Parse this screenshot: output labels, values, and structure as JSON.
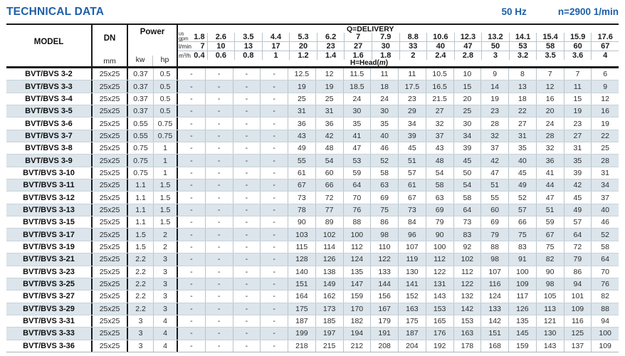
{
  "page": {
    "title": "TECHNICAL DATA",
    "frequency": "50 Hz",
    "speed": "n=2900 1/min"
  },
  "colors": {
    "accent_blue": "#1d5fa7",
    "alt_row_blue": "#dbe5eb",
    "grid_light": "#b9c4cb",
    "grid_dark": "#1a1a1a"
  },
  "table": {
    "headers": {
      "model": "MODEL",
      "dn": "DN",
      "dn_unit": "mm",
      "power": "Power",
      "kw": "kw",
      "hp": "hp",
      "delivery_label": "Q=DELIVERY",
      "head_prefix": "H=Head(",
      "head_unit": "m",
      "head_suffix": ")",
      "unit_rows": [
        {
          "unit": "us gpm",
          "unit_lines": "us\ngpm",
          "values": [
            "1.8",
            "2.6",
            "3.5",
            "4.4",
            "5.3",
            "6.2",
            "7",
            "7.9",
            "8.8",
            "10.6",
            "12.3",
            "13.2",
            "14.1",
            "15.4",
            "15.9",
            "17.6"
          ]
        },
        {
          "unit": "l/min",
          "values": [
            "7",
            "10",
            "13",
            "17",
            "20",
            "23",
            "27",
            "30",
            "33",
            "40",
            "47",
            "50",
            "53",
            "58",
            "60",
            "67"
          ]
        },
        {
          "unit": "m³/h",
          "values": [
            "0.4",
            "0.6",
            "0.8",
            "1",
            "1.2",
            "1.4",
            "1.6",
            "1.8",
            "2",
            "2.4",
            "2.8",
            "3",
            "3.2",
            "3.5",
            "3.6",
            "4"
          ]
        }
      ]
    },
    "rows": [
      {
        "model": "BVT/BVS 3-2",
        "dn": "25x25",
        "kw": "0.37",
        "hp": "0.5",
        "values": [
          "-",
          "-",
          "-",
          "-",
          "12.5",
          "12",
          "11.5",
          "11",
          "11",
          "10.5",
          "10",
          "9",
          "8",
          "7",
          "7",
          "6"
        ]
      },
      {
        "model": "BVT/BVS 3-3",
        "dn": "25x25",
        "kw": "0.37",
        "hp": "0.5",
        "values": [
          "-",
          "-",
          "-",
          "-",
          "19",
          "19",
          "18.5",
          "18",
          "17.5",
          "16.5",
          "15",
          "14",
          "13",
          "12",
          "11",
          "9"
        ]
      },
      {
        "model": "BVT/BVS 3-4",
        "dn": "25x25",
        "kw": "0.37",
        "hp": "0.5",
        "values": [
          "-",
          "-",
          "-",
          "-",
          "25",
          "25",
          "24",
          "24",
          "23",
          "21.5",
          "20",
          "19",
          "18",
          "16",
          "15",
          "12"
        ]
      },
      {
        "model": "BVT/BVS 3-5",
        "dn": "25x25",
        "kw": "0.37",
        "hp": "0.5",
        "values": [
          "-",
          "-",
          "-",
          "-",
          "31",
          "31",
          "30",
          "30",
          "29",
          "27",
          "25",
          "23",
          "22",
          "20",
          "19",
          "16"
        ]
      },
      {
        "model": "BVT/BVS 3-6",
        "dn": "25x25",
        "kw": "0.55",
        "hp": "0.75",
        "values": [
          "-",
          "-",
          "-",
          "-",
          "36",
          "36",
          "35",
          "35",
          "34",
          "32",
          "30",
          "28",
          "27",
          "24",
          "23",
          "19"
        ]
      },
      {
        "model": "BVT/BVS 3-7",
        "dn": "25x25",
        "kw": "0.55",
        "hp": "0.75",
        "values": [
          "-",
          "-",
          "-",
          "-",
          "43",
          "42",
          "41",
          "40",
          "39",
          "37",
          "34",
          "32",
          "31",
          "28",
          "27",
          "22"
        ]
      },
      {
        "model": "BVT/BVS 3-8",
        "dn": "25x25",
        "kw": "0.75",
        "hp": "1",
        "values": [
          "-",
          "-",
          "-",
          "-",
          "49",
          "48",
          "47",
          "46",
          "45",
          "43",
          "39",
          "37",
          "35",
          "32",
          "31",
          "25"
        ]
      },
      {
        "model": "BVT/BVS 3-9",
        "dn": "25x25",
        "kw": "0.75",
        "hp": "1",
        "values": [
          "-",
          "-",
          "-",
          "-",
          "55",
          "54",
          "53",
          "52",
          "51",
          "48",
          "45",
          "42",
          "40",
          "36",
          "35",
          "28"
        ]
      },
      {
        "model": "BVT/BVS 3-10",
        "dn": "25x25",
        "kw": "0.75",
        "hp": "1",
        "values": [
          "-",
          "-",
          "-",
          "-",
          "61",
          "60",
          "59",
          "58",
          "57",
          "54",
          "50",
          "47",
          "45",
          "41",
          "39",
          "31"
        ]
      },
      {
        "model": "BVT/BVS 3-11",
        "dn": "25x25",
        "kw": "1.1",
        "hp": "1.5",
        "values": [
          "-",
          "-",
          "-",
          "-",
          "67",
          "66",
          "64",
          "63",
          "61",
          "58",
          "54",
          "51",
          "49",
          "44",
          "42",
          "34"
        ]
      },
      {
        "model": "BVT/BVS 3-12",
        "dn": "25x25",
        "kw": "1.1",
        "hp": "1.5",
        "values": [
          "-",
          "-",
          "-",
          "-",
          "73",
          "72",
          "70",
          "69",
          "67",
          "63",
          "58",
          "55",
          "52",
          "47",
          "45",
          "37"
        ]
      },
      {
        "model": "BVT/BVS 3-13",
        "dn": "25x25",
        "kw": "1.1",
        "hp": "1.5",
        "values": [
          "-",
          "-",
          "-",
          "-",
          "78",
          "77",
          "76",
          "75",
          "73",
          "69",
          "64",
          "60",
          "57",
          "51",
          "49",
          "40"
        ]
      },
      {
        "model": "BVT/BVS 3-15",
        "dn": "25x25",
        "kw": "1.1",
        "hp": "1.5",
        "values": [
          "-",
          "-",
          "-",
          "-",
          "90",
          "89",
          "88",
          "86",
          "84",
          "79",
          "73",
          "69",
          "66",
          "59",
          "57",
          "46"
        ]
      },
      {
        "model": "BVT/BVS 3-17",
        "dn": "25x25",
        "kw": "1.5",
        "hp": "2",
        "values": [
          "-",
          "-",
          "-",
          "-",
          "103",
          "102",
          "100",
          "98",
          "96",
          "90",
          "83",
          "79",
          "75",
          "67",
          "64",
          "52"
        ]
      },
      {
        "model": "BVT/BVS 3-19",
        "dn": "25x25",
        "kw": "1.5",
        "hp": "2",
        "values": [
          "-",
          "-",
          "-",
          "-",
          "115",
          "114",
          "112",
          "110",
          "107",
          "100",
          "92",
          "88",
          "83",
          "75",
          "72",
          "58"
        ]
      },
      {
        "model": "BVT/BVS 3-21",
        "dn": "25x25",
        "kw": "2.2",
        "hp": "3",
        "values": [
          "-",
          "-",
          "-",
          "-",
          "128",
          "126",
          "124",
          "122",
          "119",
          "112",
          "102",
          "98",
          "91",
          "82",
          "79",
          "64"
        ]
      },
      {
        "model": "BVT/BVS 3-23",
        "dn": "25x25",
        "kw": "2.2",
        "hp": "3",
        "values": [
          "-",
          "-",
          "-",
          "-",
          "140",
          "138",
          "135",
          "133",
          "130",
          "122",
          "112",
          "107",
          "100",
          "90",
          "86",
          "70"
        ]
      },
      {
        "model": "BVT/BVS 3-25",
        "dn": "25x25",
        "kw": "2.2",
        "hp": "3",
        "values": [
          "-",
          "-",
          "-",
          "-",
          "151",
          "149",
          "147",
          "144",
          "141",
          "131",
          "122",
          "116",
          "109",
          "98",
          "94",
          "76"
        ]
      },
      {
        "model": "BVT/BVS 3-27",
        "dn": "25x25",
        "kw": "2.2",
        "hp": "3",
        "values": [
          "-",
          "-",
          "-",
          "-",
          "164",
          "162",
          "159",
          "156",
          "152",
          "143",
          "132",
          "124",
          "117",
          "105",
          "101",
          "82"
        ]
      },
      {
        "model": "BVT/BVS 3-29",
        "dn": "25x25",
        "kw": "2.2",
        "hp": "3",
        "values": [
          "-",
          "-",
          "-",
          "-",
          "175",
          "173",
          "170",
          "167",
          "163",
          "153",
          "142",
          "133",
          "126",
          "113",
          "109",
          "88"
        ]
      },
      {
        "model": "BVT/BVS 3-31",
        "dn": "25x25",
        "kw": "3",
        "hp": "4",
        "values": [
          "-",
          "-",
          "-",
          "-",
          "187",
          "185",
          "182",
          "179",
          "175",
          "165",
          "153",
          "142",
          "135",
          "121",
          "116",
          "94"
        ]
      },
      {
        "model": "BVT/BVS 3-33",
        "dn": "25x25",
        "kw": "3",
        "hp": "4",
        "values": [
          "-",
          "-",
          "-",
          "-",
          "199",
          "197",
          "194",
          "191",
          "187",
          "176",
          "163",
          "151",
          "145",
          "130",
          "125",
          "100"
        ]
      },
      {
        "model": "BVT/BVS 3-36",
        "dn": "25x25",
        "kw": "3",
        "hp": "4",
        "values": [
          "-",
          "-",
          "-",
          "-",
          "218",
          "215",
          "212",
          "208",
          "204",
          "192",
          "178",
          "168",
          "159",
          "143",
          "137",
          "109"
        ]
      }
    ]
  }
}
